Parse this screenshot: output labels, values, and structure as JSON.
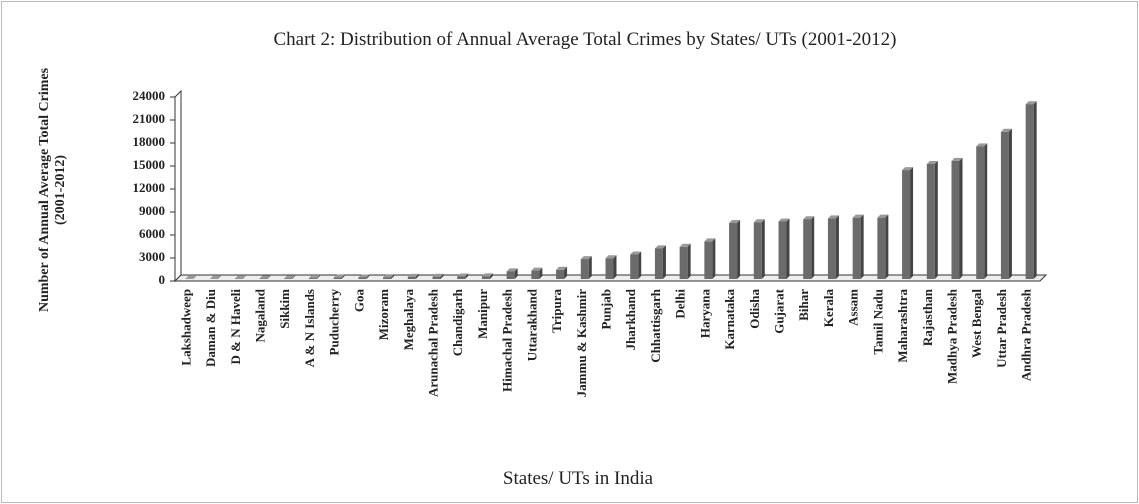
{
  "chart_data": {
    "type": "bar",
    "title": "Chart 2: Distribution of Annual Average  Total Crimes by States/ UTs (2001-2012)",
    "y_label": [
      "Number of Annual Average Total Crimes",
      "(2001-2012)"
    ],
    "x_label": "States/ UTs in India",
    "categories": [
      "Lakshadweep",
      "Daman & Diu",
      "D & N Haveli",
      "Nagaland",
      "Sikkim",
      "A & N Islands",
      "Puducherry",
      "Goa",
      "Mizoram",
      "Meghalaya",
      "Arunachal Pradesh",
      "Chandigarh",
      "Manipur",
      "Himachal Pradesh",
      "Uttarakhand",
      "Tripura",
      "Jammu & Kashmir",
      "Punjab",
      "Jharkhand",
      "Chhattisgarh",
      "Delhi",
      "Haryana",
      "Karnataka",
      "Odisha",
      "Gujarat",
      "Bihar",
      "Kerala",
      "Assam",
      "Tamil Nadu",
      "Maharashtra",
      "Rajasthan",
      "Madhya Pradesh",
      "West Bengal",
      "Uttar Pradesh",
      "Andhra Pradesh"
    ],
    "values": [
      10,
      30,
      40,
      60,
      80,
      120,
      180,
      200,
      230,
      280,
      300,
      330,
      350,
      1000,
      1100,
      1200,
      2600,
      2700,
      3200,
      4000,
      4200,
      4900,
      7300,
      7400,
      7500,
      7800,
      7900,
      8000,
      8000,
      14200,
      15000,
      15400,
      17300,
      19200,
      22800
    ],
    "color": "#6b6b6b",
    "ylim": [
      0,
      24000
    ],
    "yticks": [
      0,
      3000,
      6000,
      9000,
      12000,
      15000,
      18000,
      21000,
      24000
    ],
    "grid": false
  }
}
